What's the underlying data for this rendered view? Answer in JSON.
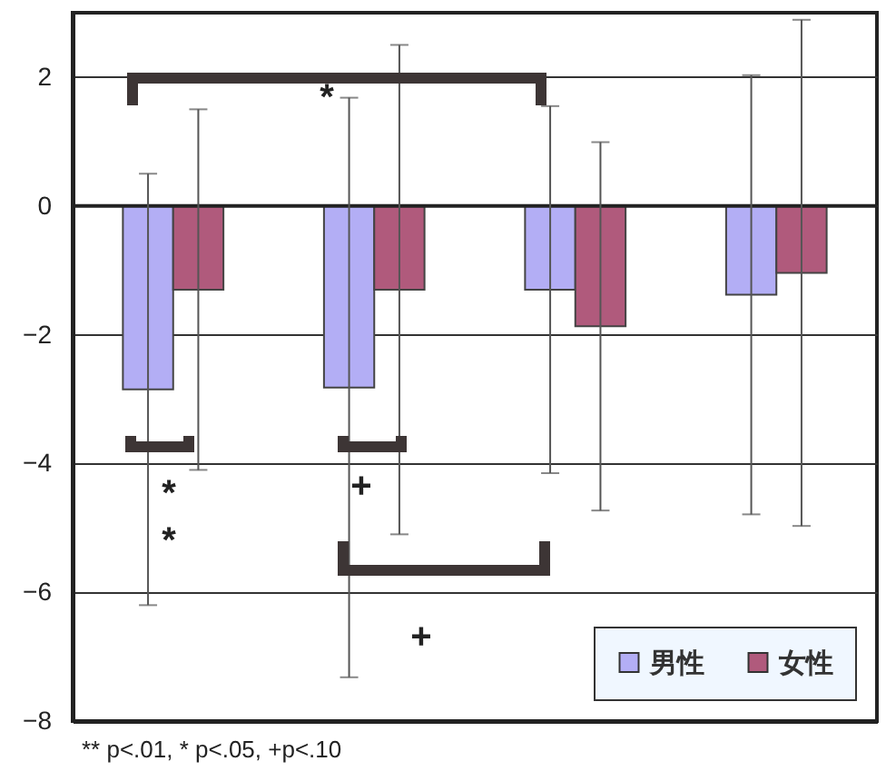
{
  "chart_data": {
    "type": "bar",
    "categories": [
      null,
      null,
      null,
      null
    ],
    "series": [
      {
        "name": "男性",
        "color": "#b3aef5",
        "values": [
          -2.85,
          -2.82,
          -1.3,
          -1.38
        ],
        "errors": [
          3.35,
          4.5,
          2.85,
          3.41
        ]
      },
      {
        "name": "女性",
        "color": "#b05a7c",
        "values": [
          -1.3,
          -1.3,
          -1.87,
          -1.04
        ],
        "errors": [
          2.8,
          3.8,
          2.86,
          3.93
        ]
      }
    ],
    "ylim": [
      -8,
      3
    ],
    "yticks": [
      -8,
      -6,
      -4,
      -2,
      0,
      2
    ],
    "grid": "y",
    "legend": "bottom right",
    "tick_labels": "y",
    "annotations": [
      "*",
      "**",
      "+",
      "+",
      "** p<.01, * p<.05, +p<.10"
    ]
  }
}
